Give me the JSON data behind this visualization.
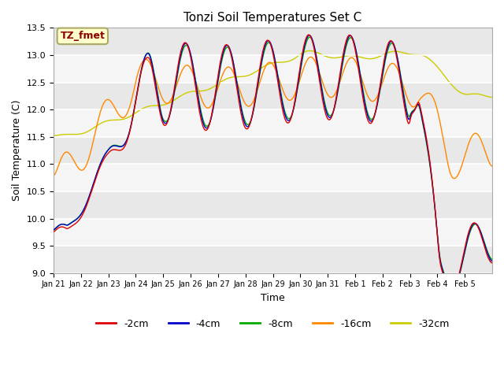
{
  "title": "Tonzi Soil Temperatures Set C",
  "xlabel": "Time",
  "ylabel": "Soil Temperature (C)",
  "ylim": [
    9.0,
    13.5
  ],
  "annotation_text": "TZ_fmet",
  "annotation_color": "#8B0000",
  "annotation_bg": "#FFFFCC",
  "annotation_border": "#AAAA66",
  "line_colors": {
    "-2cm": "#DD0000",
    "-4cm": "#0000CC",
    "-8cm": "#00AA00",
    "-16cm": "#FF8800",
    "-32cm": "#CCCC00"
  },
  "line_width": 1.0,
  "tick_labels": [
    "Jan 21",
    "Jan 22",
    "Jan 23",
    "Jan 24",
    "Jan 25",
    "Jan 26",
    "Jan 27",
    "Jan 28",
    "Jan 29",
    "Jan 30",
    "Jan 31",
    "Feb 1",
    "Feb 2",
    "Feb 3",
    "Feb 4",
    "Feb 5"
  ],
  "legend_labels": [
    "-2cm",
    "-4cm",
    "-8cm",
    "-16cm",
    "-32cm"
  ],
  "band_colors": [
    "#E8E8E8",
    "#F5F5F5"
  ],
  "figsize": [
    6.4,
    4.8
  ],
  "dpi": 100
}
